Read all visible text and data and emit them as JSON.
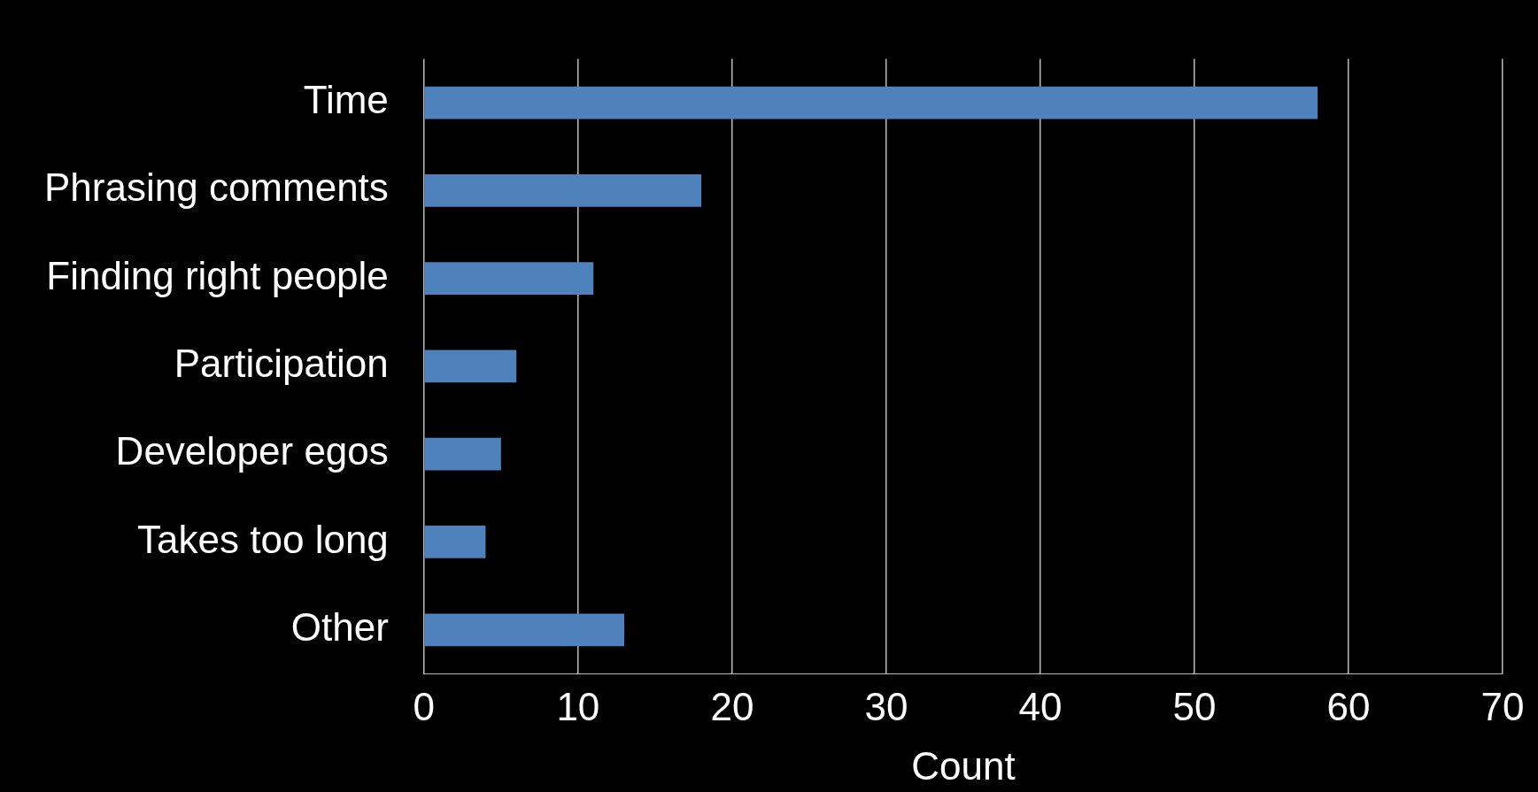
{
  "chart_data": {
    "type": "bar",
    "orientation": "horizontal",
    "xlabel": "Count",
    "categories": [
      "Time",
      "Phrasing comments",
      "Finding right people",
      "Participation",
      "Developer egos",
      "Takes too long",
      "Other"
    ],
    "values": [
      58,
      18,
      11,
      6,
      5,
      4,
      13
    ],
    "color": "#4f81bd",
    "xlim": [
      0,
      70
    ],
    "xticks": [
      0,
      10,
      20,
      30,
      40,
      50,
      60,
      70
    ],
    "grid": "x",
    "legend": false
  }
}
